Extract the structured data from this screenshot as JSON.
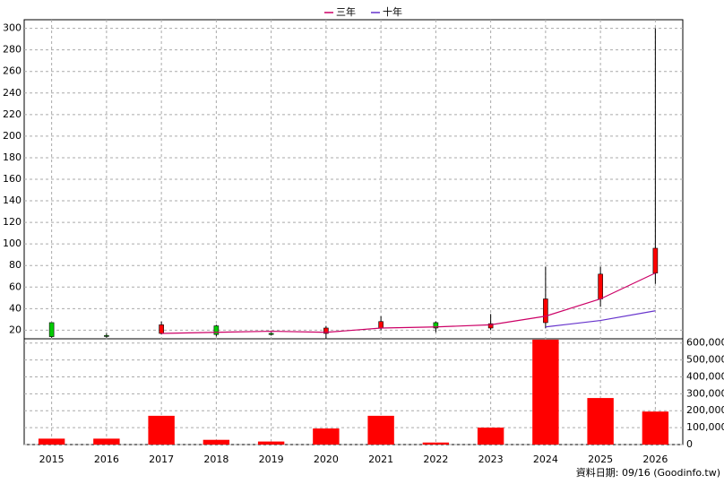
{
  "chart_data": {
    "type": "candlestick",
    "categories": [
      "2015",
      "2016",
      "2017",
      "2018",
      "2019",
      "2020",
      "2021",
      "2022",
      "2023",
      "2024",
      "2025",
      "2026"
    ],
    "open": [
      27,
      15,
      17,
      24,
      17,
      17,
      22,
      27,
      22,
      27,
      49,
      73
    ],
    "high": [
      27,
      17,
      28,
      25,
      18,
      24,
      33,
      28,
      35,
      79,
      79,
      300
    ],
    "low": [
      13,
      13,
      16,
      14,
      15,
      12,
      20,
      18,
      20,
      22,
      42,
      63
    ],
    "close": [
      14,
      14.5,
      25,
      16,
      16,
      22,
      28,
      22,
      26,
      49,
      72,
      96
    ],
    "up_color": "#ff0000",
    "down_color": "#00cc00",
    "ylim": [
      12,
      308
    ],
    "yticks": [
      20,
      40,
      60,
      80,
      100,
      120,
      140,
      160,
      180,
      200,
      220,
      240,
      260,
      280,
      300
    ],
    "grid": true,
    "lines": [
      {
        "name": "三年",
        "color": "#cc0066",
        "values": [
          null,
          null,
          17,
          18,
          19,
          18,
          22,
          23,
          25,
          33,
          49,
          73
        ]
      },
      {
        "name": "十年",
        "color": "#6633cc",
        "values": [
          null,
          null,
          null,
          null,
          null,
          null,
          null,
          null,
          null,
          23,
          29,
          38
        ]
      }
    ],
    "volume": {
      "color": "#ff0000",
      "values": [
        35000,
        35000,
        170000,
        28000,
        18000,
        95000,
        170000,
        12000,
        100000,
        620000,
        275000,
        195000
      ],
      "ylim": [
        0,
        625000
      ],
      "yticks": [
        0,
        {
          "value": 100000,
          "label": "100,000"
        },
        {
          "value": 200000,
          "label": "200,000"
        },
        {
          "value": 300000,
          "label": "300,000"
        },
        {
          "value": 400000,
          "label": "400,000"
        },
        {
          "value": 500000,
          "label": "500,000"
        },
        {
          "value": 600000,
          "label": "600,000"
        }
      ]
    },
    "footnote": "資料日期: 09/16 (Goodinfo.tw)"
  }
}
